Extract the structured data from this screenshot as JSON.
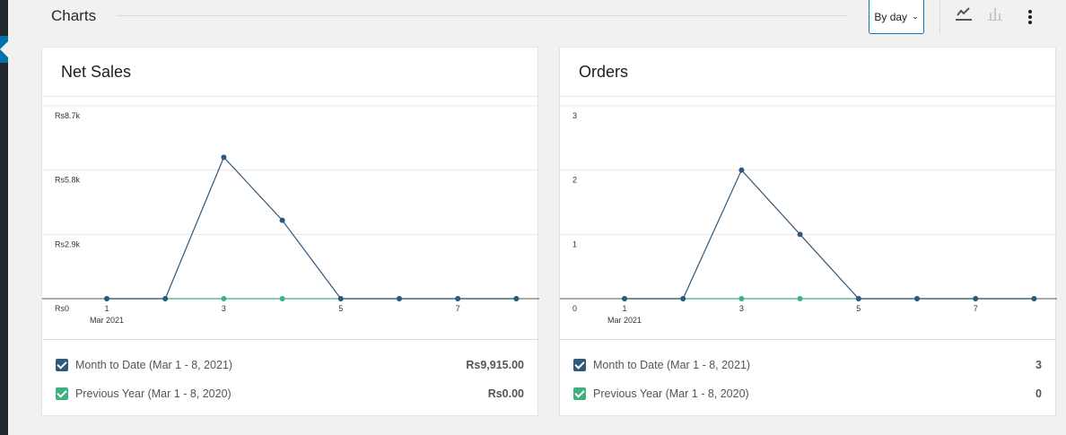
{
  "header": {
    "title": "Charts",
    "interval_select": "By day",
    "line_chart_icon": "line-chart-icon",
    "bar_chart_icon": "bar-chart-icon",
    "more_icon": "more-vertical-icon"
  },
  "colors": {
    "current": "#30587a",
    "previous": "#3db17e",
    "accent": "#007cba"
  },
  "cards": [
    {
      "title": "Net Sales",
      "legend": [
        {
          "label": "Month to Date (Mar 1 - 8, 2021)",
          "value": "Rs9,915.00",
          "color": "#30587a"
        },
        {
          "label": "Previous Year (Mar 1 - 8, 2020)",
          "value": "Rs0.00",
          "color": "#3db17e"
        }
      ]
    },
    {
      "title": "Orders",
      "legend": [
        {
          "label": "Month to Date (Mar 1 - 8, 2021)",
          "value": "3",
          "color": "#30587a"
        },
        {
          "label": "Previous Year (Mar 1 - 8, 2020)",
          "value": "0",
          "color": "#3db17e"
        }
      ]
    }
  ],
  "chart_data": [
    {
      "type": "line",
      "title": "Net Sales",
      "x": [
        1,
        2,
        3,
        4,
        5,
        6,
        7,
        8
      ],
      "x_tick_labels": [
        "1",
        "3",
        "5",
        "7"
      ],
      "x_tick_values": [
        1,
        3,
        5,
        7
      ],
      "x_sublabel": "Mar 2021",
      "y_tick_labels": [
        "Rs0",
        "Rs2.9k",
        "Rs5.8k",
        "Rs8.7k"
      ],
      "y_tick_values": [
        0,
        2900,
        5800,
        8700
      ],
      "ylim": [
        0,
        8700
      ],
      "series": [
        {
          "name": "Month to Date (Mar 1 - 8, 2021)",
          "values": [
            0,
            0,
            6380,
            3535,
            0,
            0,
            0,
            0
          ]
        },
        {
          "name": "Previous Year (Mar 1 - 8, 2020)",
          "values": [
            0,
            0,
            0,
            0,
            0,
            0,
            0,
            0
          ]
        }
      ]
    },
    {
      "type": "line",
      "title": "Orders",
      "x": [
        1,
        2,
        3,
        4,
        5,
        6,
        7,
        8
      ],
      "x_tick_labels": [
        "1",
        "3",
        "5",
        "7"
      ],
      "x_tick_values": [
        1,
        3,
        5,
        7
      ],
      "x_sublabel": "Mar 2021",
      "y_tick_labels": [
        "0",
        "1",
        "2",
        "3"
      ],
      "y_tick_values": [
        0,
        1,
        2,
        3
      ],
      "ylim": [
        0,
        3
      ],
      "series": [
        {
          "name": "Month to Date (Mar 1 - 8, 2021)",
          "values": [
            0,
            0,
            2,
            1,
            0,
            0,
            0,
            0
          ]
        },
        {
          "name": "Previous Year (Mar 1 - 8, 2020)",
          "values": [
            0,
            0,
            0,
            0,
            0,
            0,
            0,
            0
          ]
        }
      ]
    }
  ]
}
